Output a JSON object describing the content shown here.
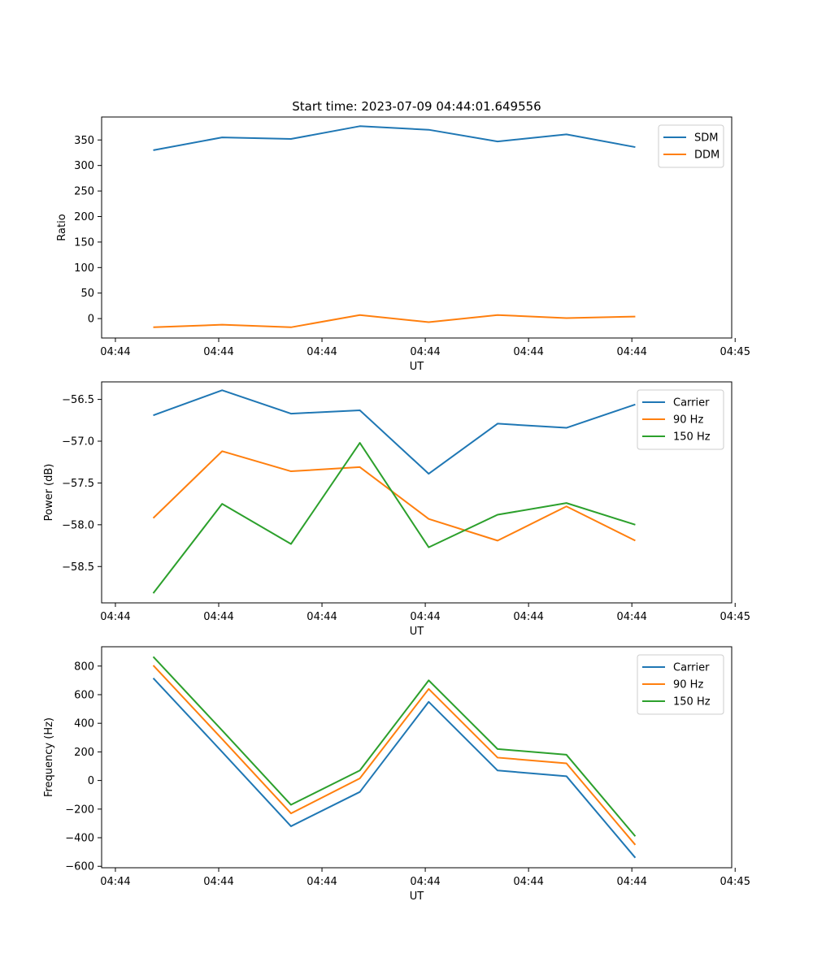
{
  "figure": {
    "title": "Start time: 2023-07-09 04:44:01.649556"
  },
  "chart_data": [
    {
      "type": "line",
      "title": "Start time: 2023-07-09 04:44:01.649556",
      "xlabel": "UT",
      "ylabel": "Ratio",
      "x_positions": [
        1,
        2,
        3,
        4,
        5,
        6,
        7,
        8
      ],
      "xlim": [
        0.25,
        9.4
      ],
      "ylim": [
        -38,
        395
      ],
      "xticks": [
        0.45,
        1.95,
        3.45,
        4.95,
        6.45,
        7.95,
        9.45
      ],
      "xtick_labels": [
        "04:44",
        "04:44",
        "04:44",
        "04:44",
        "04:44",
        "04:44",
        "04:45"
      ],
      "yticks": [
        0,
        50,
        100,
        150,
        200,
        250,
        300,
        350
      ],
      "ytick_labels": [
        "0",
        "50",
        "100",
        "150",
        "200",
        "250",
        "300",
        "350"
      ],
      "legend_position": "top-right",
      "series": [
        {
          "name": "SDM",
          "color": "#1f77b4",
          "values": [
            330,
            355,
            352,
            377,
            370,
            347,
            361,
            336
          ]
        },
        {
          "name": "DDM",
          "color": "#ff7f0e",
          "values": [
            -17,
            -12,
            -17,
            7,
            -7,
            7,
            1,
            4
          ]
        }
      ]
    },
    {
      "type": "line",
      "title": "",
      "xlabel": "UT",
      "ylabel": "Power (dB)",
      "x_positions": [
        1,
        2,
        3,
        4,
        5,
        6,
        7,
        8
      ],
      "xlim": [
        0.25,
        9.4
      ],
      "ylim": [
        -58.935,
        -56.29
      ],
      "xticks": [
        0.45,
        1.95,
        3.45,
        4.95,
        6.45,
        7.95,
        9.45
      ],
      "xtick_labels": [
        "04:44",
        "04:44",
        "04:44",
        "04:44",
        "04:44",
        "04:44",
        "04:45"
      ],
      "yticks": [
        -58.5,
        -58.0,
        -57.5,
        -57.0,
        -56.5
      ],
      "ytick_labels": [
        "−58.5",
        "−58.0",
        "−57.5",
        "−57.0",
        "−56.5"
      ],
      "legend_position": "top-right",
      "series": [
        {
          "name": "Carrier",
          "color": "#1f77b4",
          "values": [
            -56.69,
            -56.39,
            -56.67,
            -56.63,
            -57.39,
            -56.79,
            -56.84,
            -56.56
          ]
        },
        {
          "name": "90 Hz",
          "color": "#ff7f0e",
          "values": [
            -57.92,
            -57.12,
            -57.36,
            -57.31,
            -57.93,
            -58.19,
            -57.78,
            -58.19
          ]
        },
        {
          "name": "150 Hz",
          "color": "#2ca02c",
          "values": [
            -58.82,
            -57.75,
            -58.23,
            -57.02,
            -58.27,
            -57.88,
            -57.74,
            -58.0
          ]
        }
      ]
    },
    {
      "type": "line",
      "title": "",
      "xlabel": "UT",
      "ylabel": "Frequency (Hz)",
      "x_positions": [
        1,
        2,
        3,
        4,
        5,
        6,
        7,
        8
      ],
      "xlim": [
        0.25,
        9.4
      ],
      "ylim": [
        -610,
        935
      ],
      "xticks": [
        0.45,
        1.95,
        3.45,
        4.95,
        6.45,
        7.95,
        9.45
      ],
      "xtick_labels": [
        "04:44",
        "04:44",
        "04:44",
        "04:44",
        "04:44",
        "04:44",
        "04:45"
      ],
      "yticks": [
        -600,
        -400,
        -200,
        0,
        200,
        400,
        600,
        800
      ],
      "ytick_labels": [
        "−600",
        "−400",
        "−200",
        "0",
        "200",
        "400",
        "600",
        "800"
      ],
      "legend_position": "top-right",
      "series": [
        {
          "name": "Carrier",
          "color": "#1f77b4",
          "values": [
            715,
            200,
            -320,
            -80,
            550,
            70,
            30,
            -540
          ]
        },
        {
          "name": "90 Hz",
          "color": "#ff7f0e",
          "values": [
            805,
            290,
            -230,
            15,
            640,
            160,
            120,
            -450
          ]
        },
        {
          "name": "150 Hz",
          "color": "#2ca02c",
          "values": [
            865,
            350,
            -170,
            70,
            700,
            220,
            180,
            -390
          ]
        }
      ]
    }
  ]
}
